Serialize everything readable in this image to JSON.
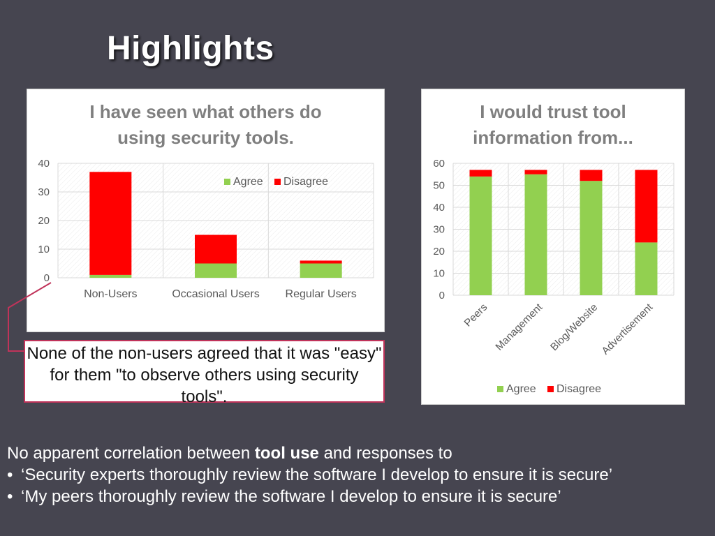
{
  "slide": {
    "title": "Highlights"
  },
  "colors": {
    "agree": "#92d050",
    "disagree": "#ff0000",
    "axis_text": "#595959",
    "grid": "#d9d9d9"
  },
  "chart_data": [
    {
      "type": "bar",
      "stacked": true,
      "title_lines": [
        "I have seen what others do",
        "using security tools."
      ],
      "categories": [
        "Non-Users",
        "Occasional Users",
        "Regular Users"
      ],
      "series": [
        {
          "name": "Agree",
          "values": [
            1,
            5,
            5
          ]
        },
        {
          "name": "Disagree",
          "values": [
            36,
            10,
            1
          ]
        }
      ],
      "ylim": [
        0,
        40
      ],
      "yticks": [
        "0",
        "10",
        "20",
        "30",
        "40"
      ],
      "legend": "top-right",
      "grid": true
    },
    {
      "type": "bar",
      "stacked": true,
      "title_lines": [
        "I would trust tool",
        "information from..."
      ],
      "categories": [
        "Peers",
        "Management",
        "Blog/Website",
        "Advertisement"
      ],
      "series": [
        {
          "name": "Agree",
          "values": [
            54,
            55,
            52,
            24
          ]
        },
        {
          "name": "Disagree",
          "values": [
            3,
            2,
            5,
            33
          ]
        }
      ],
      "ylim": [
        0,
        60
      ],
      "yticks": [
        "0",
        "10",
        "20",
        "30",
        "40",
        "50",
        "60"
      ],
      "legend": "bottom",
      "grid": true
    }
  ],
  "callout": {
    "text": "None of the non-users agreed that it was \"easy\" for them \"to observe others using security tools\"."
  },
  "bottom": {
    "intro_before": "No apparent correlation between ",
    "intro_bold": "tool use",
    "intro_after": " and responses to",
    "bullet_symbol": "•",
    "bullets": [
      "‘Security experts thoroughly review the software I develop to ensure it is secure’",
      "‘My peers thoroughly review the software I develop to ensure it is secure’"
    ]
  }
}
